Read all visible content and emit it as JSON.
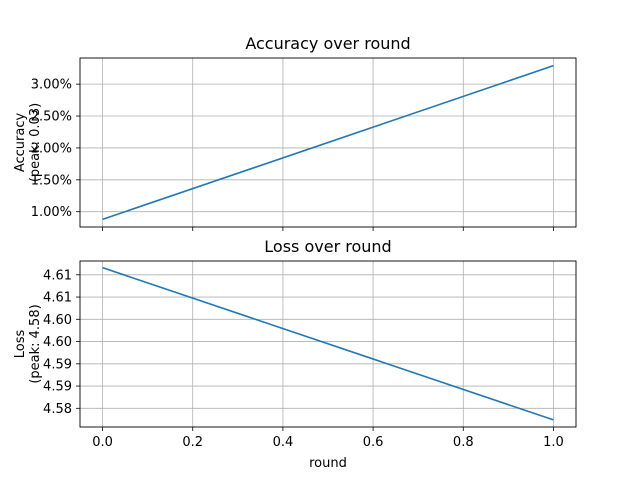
{
  "chart_data": [
    {
      "type": "line",
      "title": "Accuracy over round",
      "ylabel": "Accuracy\n(peak: 0.03)",
      "xlabel": "",
      "x": [
        0.0,
        1.0
      ],
      "series": [
        {
          "values": [
            0.0088,
            0.0329
          ]
        }
      ],
      "xlim": [
        -0.05,
        1.05
      ],
      "ylim": [
        0.0076,
        0.0341
      ],
      "xticks": [
        0.0,
        0.2,
        0.4,
        0.6,
        0.8,
        1.0
      ],
      "xtick_labels": [
        "",
        "",
        "",
        "",
        "",
        ""
      ],
      "yticks": [
        0.01,
        0.015,
        0.02,
        0.025,
        0.03
      ],
      "ytick_labels": [
        "1.00%",
        "1.50%",
        "2.00%",
        "2.50%",
        "3.00%"
      ],
      "grid": true,
      "color": "#1f77b4"
    },
    {
      "type": "line",
      "title": "Loss over round",
      "ylabel": "Loss\n(peak: 4.58)",
      "xlabel": "round",
      "x": [
        0.0,
        1.0
      ],
      "series": [
        {
          "values": [
            4.6116,
            4.5774
          ]
        }
      ],
      "xlim": [
        -0.05,
        1.05
      ],
      "ylim": [
        4.5758,
        4.6131
      ],
      "xticks": [
        0.0,
        0.2,
        0.4,
        0.6,
        0.8,
        1.0
      ],
      "xtick_labels": [
        "0.0",
        "0.2",
        "0.4",
        "0.6",
        "0.8",
        "1.0"
      ],
      "yticks": [
        4.58,
        4.585,
        4.59,
        4.595,
        4.6,
        4.605,
        4.61
      ],
      "ytick_labels": [
        "4.58",
        "4.59",
        "4.59",
        "4.60",
        "4.60",
        "4.61",
        "4.61"
      ],
      "grid": true,
      "color": "#1f77b4"
    }
  ]
}
